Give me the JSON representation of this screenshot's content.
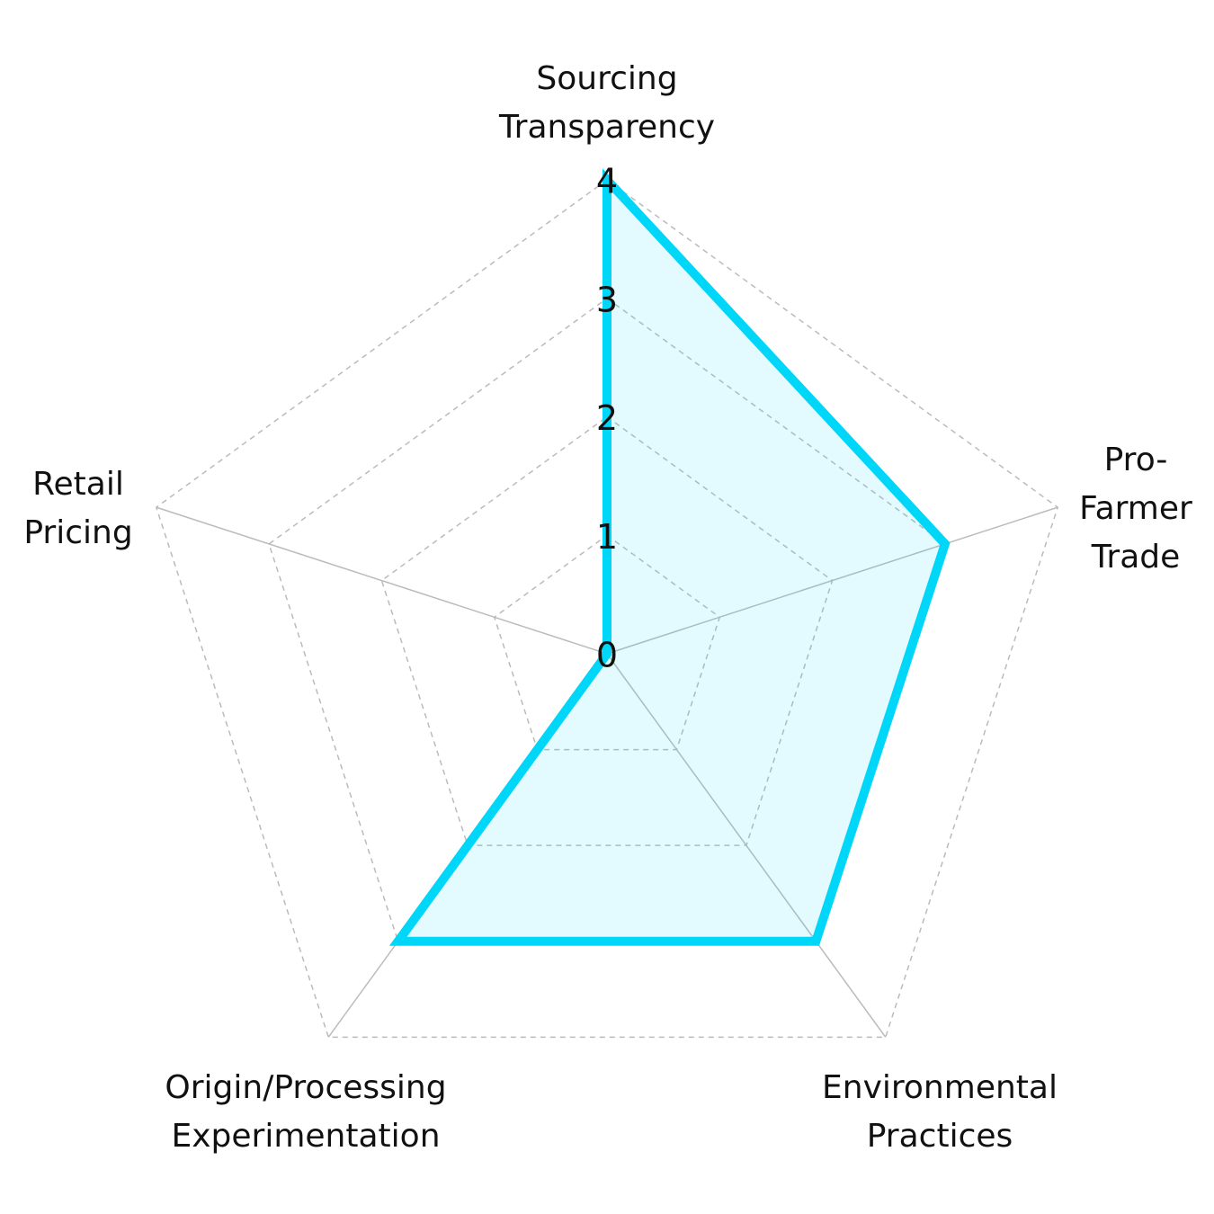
{
  "chart_data": {
    "type": "radar",
    "categories": [
      "Sourcing Transparency",
      "Pro-Farmer Trade",
      "Environmental Practices",
      "Origin/Processing Experimentation",
      "Retail Pricing"
    ],
    "series": [
      {
        "color": "#00d6f7",
        "values": [
          4,
          3,
          3,
          3,
          0
        ]
      }
    ],
    "rlim": [
      0,
      4
    ],
    "rticks": [
      0,
      1,
      2,
      3,
      4
    ],
    "grid": true
  }
}
